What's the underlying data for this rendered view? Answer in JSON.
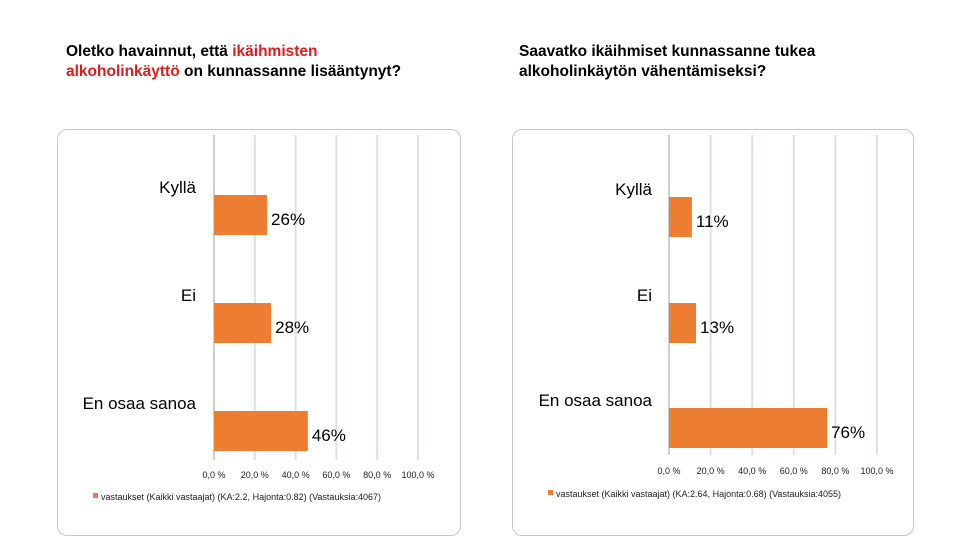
{
  "heading_left": {
    "part1": "Oletko havainnut, että ",
    "highlight1": "ikäihmisten",
    "highlight2": "alkoholinkäyttö",
    "part2": " on kunnassanne lisääntynyt?"
  },
  "heading_right": {
    "line1": "Saavatko ikäihmiset kunnassanne tukea",
    "line2": "alkoholinkäytön vähentämiseksi?"
  },
  "colors": {
    "bar": "#ed7d31",
    "grid": "#d9e1ee",
    "axis": "#bfbfbf",
    "highlight": "#e01b1b"
  },
  "chart_data": [
    {
      "type": "bar",
      "orientation": "horizontal",
      "categories": [
        "Kyllä",
        "Ei",
        "En osaa sanoa"
      ],
      "values": [
        26,
        28,
        46
      ],
      "value_labels": [
        "26%",
        "28%",
        "46%"
      ],
      "xlim": [
        0,
        100
      ],
      "x_ticks": [
        "0,0 %",
        "20,0 %",
        "40,0 %",
        "60,0 %",
        "80,0 %",
        "100,0 %"
      ],
      "legend": "vastaukset (Kaikki vastaajat) (KA:2.2, Hajonta:0.82) (Vastauksia:4067)",
      "legend_position": "bottom",
      "grid": true
    },
    {
      "type": "bar",
      "orientation": "horizontal",
      "categories": [
        "Kyllä",
        "Ei",
        "En osaa sanoa"
      ],
      "values": [
        11,
        13,
        76
      ],
      "value_labels": [
        "11%",
        "13%",
        "76%"
      ],
      "xlim": [
        0,
        100
      ],
      "x_ticks": [
        "0,0 %",
        "20,0 %",
        "40,0 %",
        "60,0 %",
        "80,0 %",
        "100,0 %"
      ],
      "legend": "vastaukset (Kaikki vastaajat) (KA:2.64, Hajonta:0.68) (Vastauksia:4055)",
      "legend_position": "bottom",
      "grid": true
    }
  ]
}
